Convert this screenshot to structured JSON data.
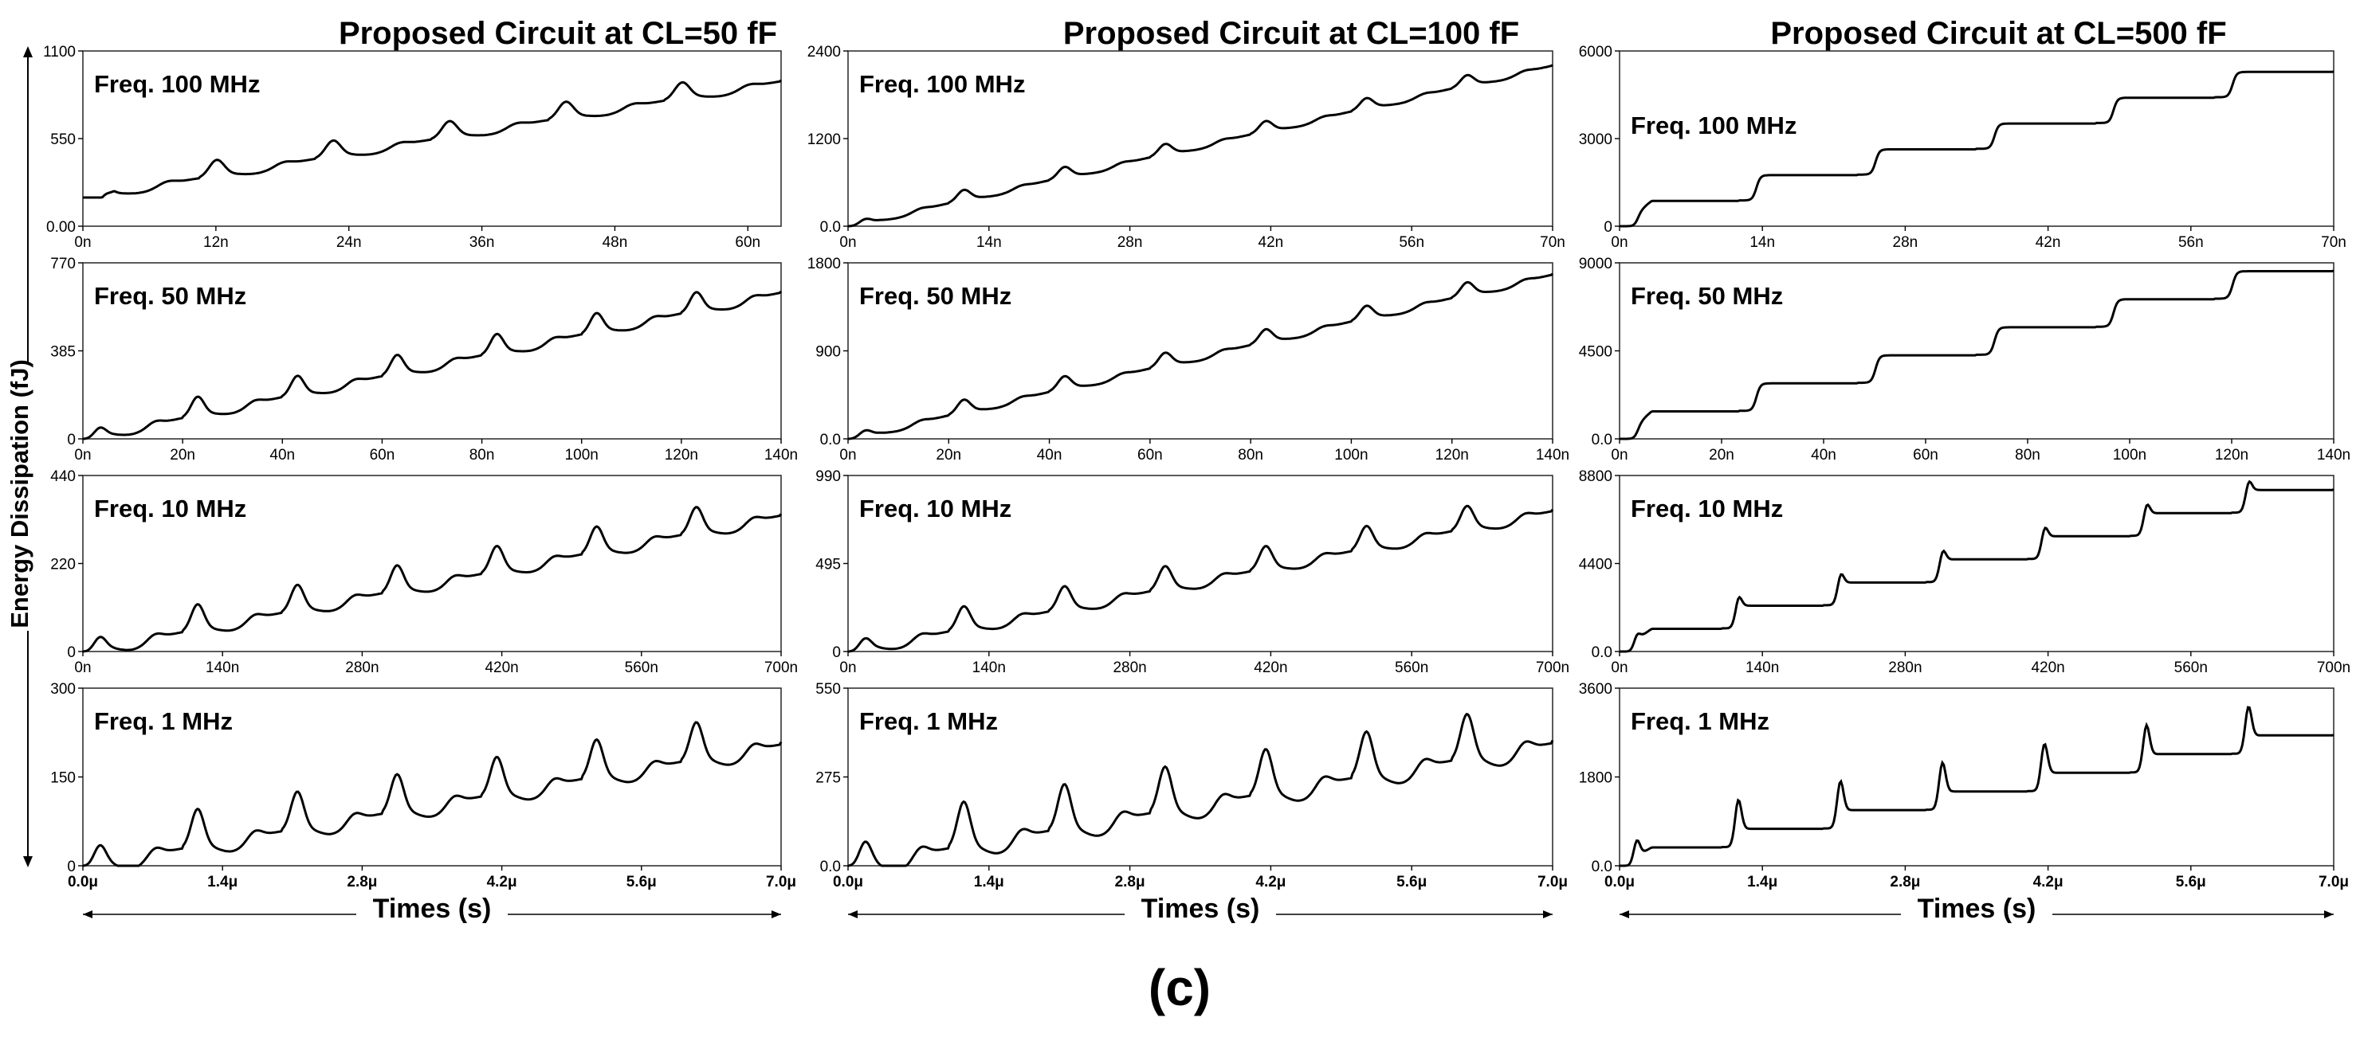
{
  "figure": {
    "caption": "(c)",
    "ylabel": "Energy Dissipation (fJ)",
    "xlabel": "Times (s)"
  },
  "chart_data": [
    {
      "type": "line",
      "title": "Proposed Circuit at CL=50 fF",
      "panels": [
        {
          "label": "Freq. 100 MHz",
          "ylim": [
            0,
            1100
          ],
          "yticks": [
            "0.00",
            "550",
            "1100"
          ],
          "xlim": [
            0,
            63
          ],
          "xticks": [
            "0n",
            "12n",
            "24n",
            "36n",
            "48n",
            "60n"
          ],
          "shape": "osc",
          "start": 180,
          "end": 910,
          "amp": 85,
          "cycles": 6,
          "bold": false
        },
        {
          "label": "Freq. 50 MHz",
          "ylim": [
            0,
            770
          ],
          "yticks": [
            "0",
            "385",
            "770"
          ],
          "xlim": [
            0,
            140
          ],
          "xticks": [
            "0n",
            "20n",
            "40n",
            "60n",
            "80n",
            "100n",
            "120n",
            "140n"
          ],
          "shape": "osc",
          "start": 0,
          "end": 640,
          "amp": 70,
          "cycles": 7,
          "bold": false
        },
        {
          "label": "Freq. 10 MHz",
          "ylim": [
            0,
            440
          ],
          "yticks": [
            "0",
            "220",
            "440"
          ],
          "xlim": [
            0,
            700
          ],
          "xticks": [
            "0n",
            "140n",
            "280n",
            "420n",
            "560n",
            "700n"
          ],
          "shape": "osc",
          "start": 0,
          "end": 340,
          "amp": 55,
          "cycles": 7,
          "bold": false
        },
        {
          "label": "Freq. 1 MHz",
          "ylim": [
            0,
            300
          ],
          "yticks": [
            "0",
            "150",
            "300"
          ],
          "xlim": [
            0,
            7.0
          ],
          "xticks": [
            "0.0μ",
            "1.4μ",
            "2.8μ",
            "4.2μ",
            "5.6μ",
            "7.0μ"
          ],
          "shape": "osc",
          "start": 0,
          "end": 205,
          "amp": 55,
          "cycles": 7,
          "bold": true
        }
      ]
    },
    {
      "type": "line",
      "title": "Proposed Circuit at CL=100 fF",
      "panels": [
        {
          "label": "Freq. 100 MHz",
          "ylim": [
            0,
            2400
          ],
          "yticks": [
            "0.0",
            "1200",
            "2400"
          ],
          "xlim": [
            0,
            70
          ],
          "xticks": [
            "0n",
            "14n",
            "28n",
            "42n",
            "56n",
            "70n"
          ],
          "shape": "osc",
          "start": 0,
          "end": 2200,
          "amp": 120,
          "cycles": 7,
          "bold": false
        },
        {
          "label": "Freq. 50 MHz",
          "ylim": [
            0,
            1800
          ],
          "yticks": [
            "0.0",
            "900",
            "1800"
          ],
          "xlim": [
            0,
            140
          ],
          "xticks": [
            "0n",
            "20n",
            "40n",
            "60n",
            "80n",
            "100n",
            "120n",
            "140n"
          ],
          "shape": "osc",
          "start": 0,
          "end": 1680,
          "amp": 110,
          "cycles": 7,
          "bold": false
        },
        {
          "label": "Freq. 10 MHz",
          "ylim": [
            0,
            990
          ],
          "yticks": [
            "0",
            "495",
            "990"
          ],
          "xlim": [
            0,
            700
          ],
          "xticks": [
            "0n",
            "140n",
            "280n",
            "420n",
            "560n",
            "700n"
          ],
          "shape": "osc",
          "start": 0,
          "end": 790,
          "amp": 110,
          "cycles": 7,
          "bold": false
        },
        {
          "label": "Freq. 1 MHz",
          "ylim": [
            0,
            550
          ],
          "yticks": [
            "0.0",
            "275",
            "550"
          ],
          "xlim": [
            0,
            7.0
          ],
          "xticks": [
            "0.0μ",
            "1.4μ",
            "2.8μ",
            "4.2μ",
            "5.6μ",
            "7.0μ"
          ],
          "shape": "osc",
          "start": 0,
          "end": 380,
          "amp": 120,
          "cycles": 7,
          "bold": true
        }
      ]
    },
    {
      "type": "line",
      "title": "Proposed Circuit at CL=500 fF",
      "panels": [
        {
          "label": "Freq. 100 MHz",
          "ylim": [
            0,
            6000
          ],
          "yticks": [
            "0",
            "3000",
            "6000"
          ],
          "xlim": [
            0,
            70
          ],
          "xticks": [
            "0n",
            "14n",
            "28n",
            "42n",
            "56n",
            "70n"
          ],
          "shape": "step",
          "start": 0,
          "end": 5300,
          "amp": 0,
          "cycles": 6,
          "bold": false
        },
        {
          "label": "Freq. 50 MHz",
          "ylim": [
            0,
            9000
          ],
          "yticks": [
            "0.0",
            "4500",
            "9000"
          ],
          "xlim": [
            0,
            140
          ],
          "xticks": [
            "0n",
            "20n",
            "40n",
            "60n",
            "80n",
            "100n",
            "120n",
            "140n"
          ],
          "shape": "step",
          "start": 0,
          "end": 8600,
          "amp": 0,
          "cycles": 6,
          "bold": false
        },
        {
          "label": "Freq. 10 MHz",
          "ylim": [
            0,
            8800
          ],
          "yticks": [
            "0.0",
            "4400",
            "8800"
          ],
          "xlim": [
            0,
            700
          ],
          "xticks": [
            "0n",
            "140n",
            "280n",
            "420n",
            "560n",
            "700n"
          ],
          "shape": "stepov",
          "start": 0,
          "end": 8100,
          "amp": 700,
          "cycles": 7,
          "bold": false
        },
        {
          "label": "Freq. 1 MHz",
          "ylim": [
            0,
            3600
          ],
          "yticks": [
            "0.0",
            "1800",
            "3600"
          ],
          "xlim": [
            0,
            7.0
          ],
          "xticks": [
            "0.0μ",
            "1.4μ",
            "2.8μ",
            "4.2μ",
            "5.6μ",
            "7.0μ"
          ],
          "shape": "stepov",
          "start": 0,
          "end": 2650,
          "amp": 700,
          "cycles": 7,
          "bold": true
        }
      ]
    }
  ]
}
